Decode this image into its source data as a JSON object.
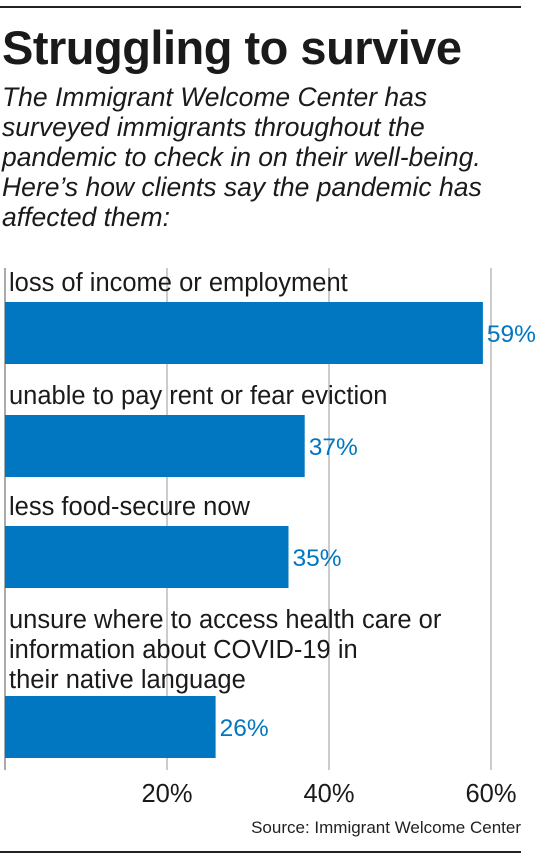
{
  "chart_data": {
    "type": "bar",
    "orientation": "horizontal",
    "title": "Struggling to survive",
    "subtitle": "The Immigrant Welcome Center has surveyed immigrants throughout the pandemic to check in on their well-being. Here’s how clients say the pandemic has affected them:",
    "categories": [
      [
        "loss of income or employment"
      ],
      [
        "unable to pay rent or fear eviction"
      ],
      [
        "less food-secure now"
      ],
      [
        "unsure where to access health care or",
        "information about COVID-19 in",
        "their native language"
      ]
    ],
    "values": [
      59,
      37,
      35,
      26
    ],
    "value_labels": [
      "59%",
      "37%",
      "35%",
      "26%"
    ],
    "xlim": [
      0,
      60
    ],
    "x_ticks": [
      20,
      40,
      60
    ],
    "x_tick_labels": [
      "20%",
      "40%",
      "60%"
    ],
    "grid": true,
    "bar_color": "#0077c0",
    "label_color": "#0077c0",
    "source": "Source: Immigrant Welcome Center"
  }
}
